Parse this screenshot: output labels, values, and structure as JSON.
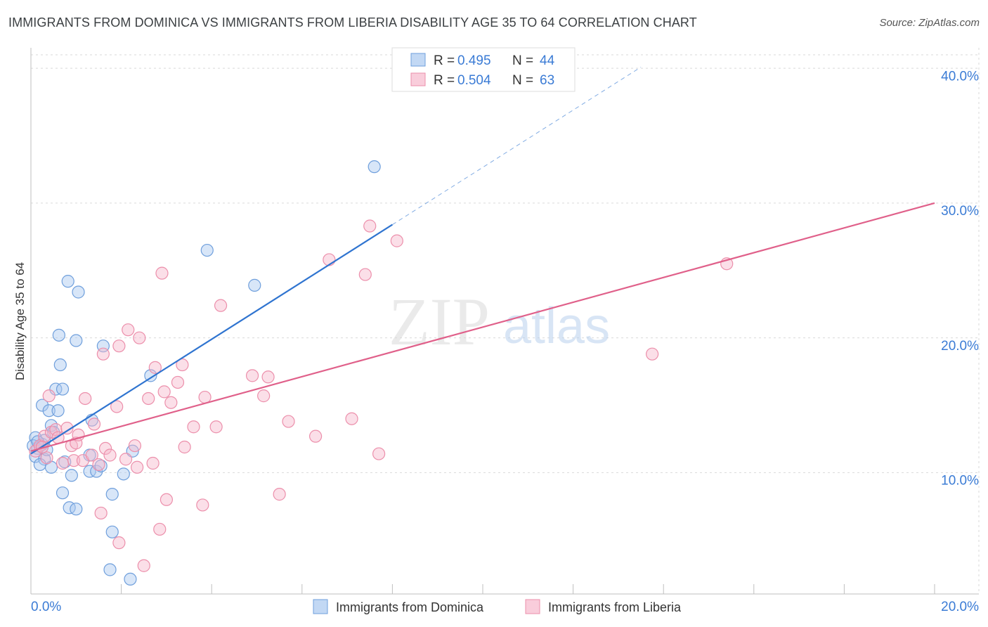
{
  "title": "IMMIGRANTS FROM DOMINICA VS IMMIGRANTS FROM LIBERIA DISABILITY AGE 35 TO 64 CORRELATION CHART",
  "source": "Source: ZipAtlas.com",
  "watermark": {
    "zip": "ZIP",
    "atlas": "atlas"
  },
  "colors": {
    "blue_fill": "#a8c8f0",
    "blue_stroke": "#6f9fdc",
    "blue_line": "#2f74d0",
    "pink_fill": "#f7b8cc",
    "pink_stroke": "#ec8fab",
    "pink_line": "#e0608a",
    "tick_text": "#3a7bd5",
    "grid": "#d9d9d9"
  },
  "legend": {
    "rows": [
      {
        "r_label": "R = ",
        "r_value": "0.495",
        "n_label": "N = ",
        "n_value": "44"
      },
      {
        "r_label": "R = ",
        "r_value": "0.504",
        "n_label": "N = ",
        "n_value": "63"
      }
    ]
  },
  "bottom_legend": [
    "Immigrants from Dominica",
    "Immigrants from Liberia"
  ],
  "chart_data": {
    "type": "scatter",
    "title": "IMMIGRANTS FROM DOMINICA VS IMMIGRANTS FROM LIBERIA DISABILITY AGE 35 TO 64 CORRELATION CHART",
    "xlabel": "",
    "ylabel": "Disability Age 35 to 64",
    "xlim": [
      0,
      20
    ],
    "ylim": [
      1,
      41
    ],
    "x_tick_labels": [
      {
        "value": 0,
        "label": "0.0%"
      },
      {
        "value": 20,
        "label": "20.0%"
      }
    ],
    "x_minor_ticks": [
      2,
      4,
      6,
      8,
      10,
      12,
      14,
      16,
      18,
      20
    ],
    "y_ticks": [
      {
        "value": 10,
        "label": "10.0%"
      },
      {
        "value": 20,
        "label": "20.0%"
      },
      {
        "value": 30,
        "label": "30.0%"
      },
      {
        "value": 40,
        "label": "40.0%"
      }
    ],
    "series": [
      {
        "name": "Immigrants from Dominica",
        "color": "blue",
        "trend": {
          "x0": 0,
          "y0": 11.4,
          "x1": 8.0,
          "y1": 28.4,
          "dash_to_x": 13.5
        },
        "points": [
          [
            0.1,
            12.6
          ],
          [
            0.15,
            11.8
          ],
          [
            0.1,
            11.2
          ],
          [
            0.25,
            12.1
          ],
          [
            0.3,
            11.0
          ],
          [
            0.2,
            10.6
          ],
          [
            0.3,
            12.4
          ],
          [
            0.25,
            15.0
          ],
          [
            0.45,
            13.5
          ],
          [
            0.4,
            14.6
          ],
          [
            0.5,
            13.0
          ],
          [
            0.45,
            10.4
          ],
          [
            0.55,
            16.2
          ],
          [
            0.7,
            16.2
          ],
          [
            0.6,
            14.6
          ],
          [
            0.75,
            10.8
          ],
          [
            0.9,
            9.8
          ],
          [
            0.7,
            8.5
          ],
          [
            0.85,
            7.4
          ],
          [
            1.0,
            7.3
          ],
          [
            0.65,
            18.0
          ],
          [
            1.0,
            19.8
          ],
          [
            0.62,
            20.2
          ],
          [
            0.82,
            24.2
          ],
          [
            1.05,
            23.4
          ],
          [
            1.35,
            13.9
          ],
          [
            1.3,
            11.3
          ],
          [
            1.3,
            10.1
          ],
          [
            1.45,
            10.1
          ],
          [
            1.55,
            10.5
          ],
          [
            1.6,
            19.4
          ],
          [
            1.8,
            8.4
          ],
          [
            1.8,
            5.6
          ],
          [
            1.75,
            2.8
          ],
          [
            2.05,
            9.9
          ],
          [
            2.25,
            11.6
          ],
          [
            2.2,
            2.1
          ],
          [
            2.65,
            17.2
          ],
          [
            3.9,
            26.5
          ],
          [
            4.95,
            23.9
          ],
          [
            7.6,
            32.7
          ],
          [
            0.05,
            12.0
          ],
          [
            0.35,
            11.7
          ],
          [
            0.15,
            12.3
          ]
        ]
      },
      {
        "name": "Immigrants from Liberia",
        "color": "pink",
        "trend": {
          "x0": 0,
          "y0": 11.6,
          "x1": 20,
          "y1": 30.0
        },
        "points": [
          [
            0.1,
            11.6
          ],
          [
            0.2,
            12.0
          ],
          [
            0.3,
            12.7
          ],
          [
            0.35,
            11.1
          ],
          [
            0.4,
            15.7
          ],
          [
            0.45,
            13.0
          ],
          [
            0.55,
            13.2
          ],
          [
            0.6,
            12.6
          ],
          [
            0.7,
            10.7
          ],
          [
            0.8,
            13.3
          ],
          [
            0.9,
            12.0
          ],
          [
            0.95,
            10.9
          ],
          [
            1.0,
            12.2
          ],
          [
            1.05,
            12.8
          ],
          [
            1.15,
            10.9
          ],
          [
            1.2,
            15.5
          ],
          [
            1.35,
            11.3
          ],
          [
            1.4,
            13.6
          ],
          [
            1.5,
            10.6
          ],
          [
            1.55,
            7.0
          ],
          [
            1.6,
            18.8
          ],
          [
            1.65,
            11.8
          ],
          [
            1.75,
            11.3
          ],
          [
            1.9,
            14.9
          ],
          [
            1.95,
            4.8
          ],
          [
            1.95,
            19.4
          ],
          [
            2.1,
            11.0
          ],
          [
            2.15,
            20.6
          ],
          [
            2.3,
            12.0
          ],
          [
            2.35,
            10.4
          ],
          [
            2.4,
            20.0
          ],
          [
            2.5,
            3.1
          ],
          [
            2.6,
            15.5
          ],
          [
            2.7,
            10.7
          ],
          [
            2.75,
            17.8
          ],
          [
            2.85,
            5.8
          ],
          [
            2.9,
            24.8
          ],
          [
            2.95,
            16.0
          ],
          [
            3.0,
            8.0
          ],
          [
            3.1,
            15.2
          ],
          [
            3.25,
            16.7
          ],
          [
            3.35,
            18.0
          ],
          [
            3.4,
            11.9
          ],
          [
            3.6,
            13.4
          ],
          [
            3.8,
            7.6
          ],
          [
            3.85,
            15.6
          ],
          [
            4.1,
            13.4
          ],
          [
            4.2,
            22.4
          ],
          [
            4.9,
            17.2
          ],
          [
            5.15,
            15.7
          ],
          [
            5.25,
            17.1
          ],
          [
            5.5,
            8.4
          ],
          [
            5.7,
            13.8
          ],
          [
            6.3,
            12.7
          ],
          [
            6.6,
            25.8
          ],
          [
            7.1,
            14.0
          ],
          [
            7.4,
            24.7
          ],
          [
            7.5,
            28.3
          ],
          [
            7.7,
            11.4
          ],
          [
            8.1,
            27.2
          ],
          [
            13.75,
            18.8
          ],
          [
            15.4,
            25.5
          ],
          [
            0.25,
            11.9
          ]
        ]
      }
    ]
  }
}
